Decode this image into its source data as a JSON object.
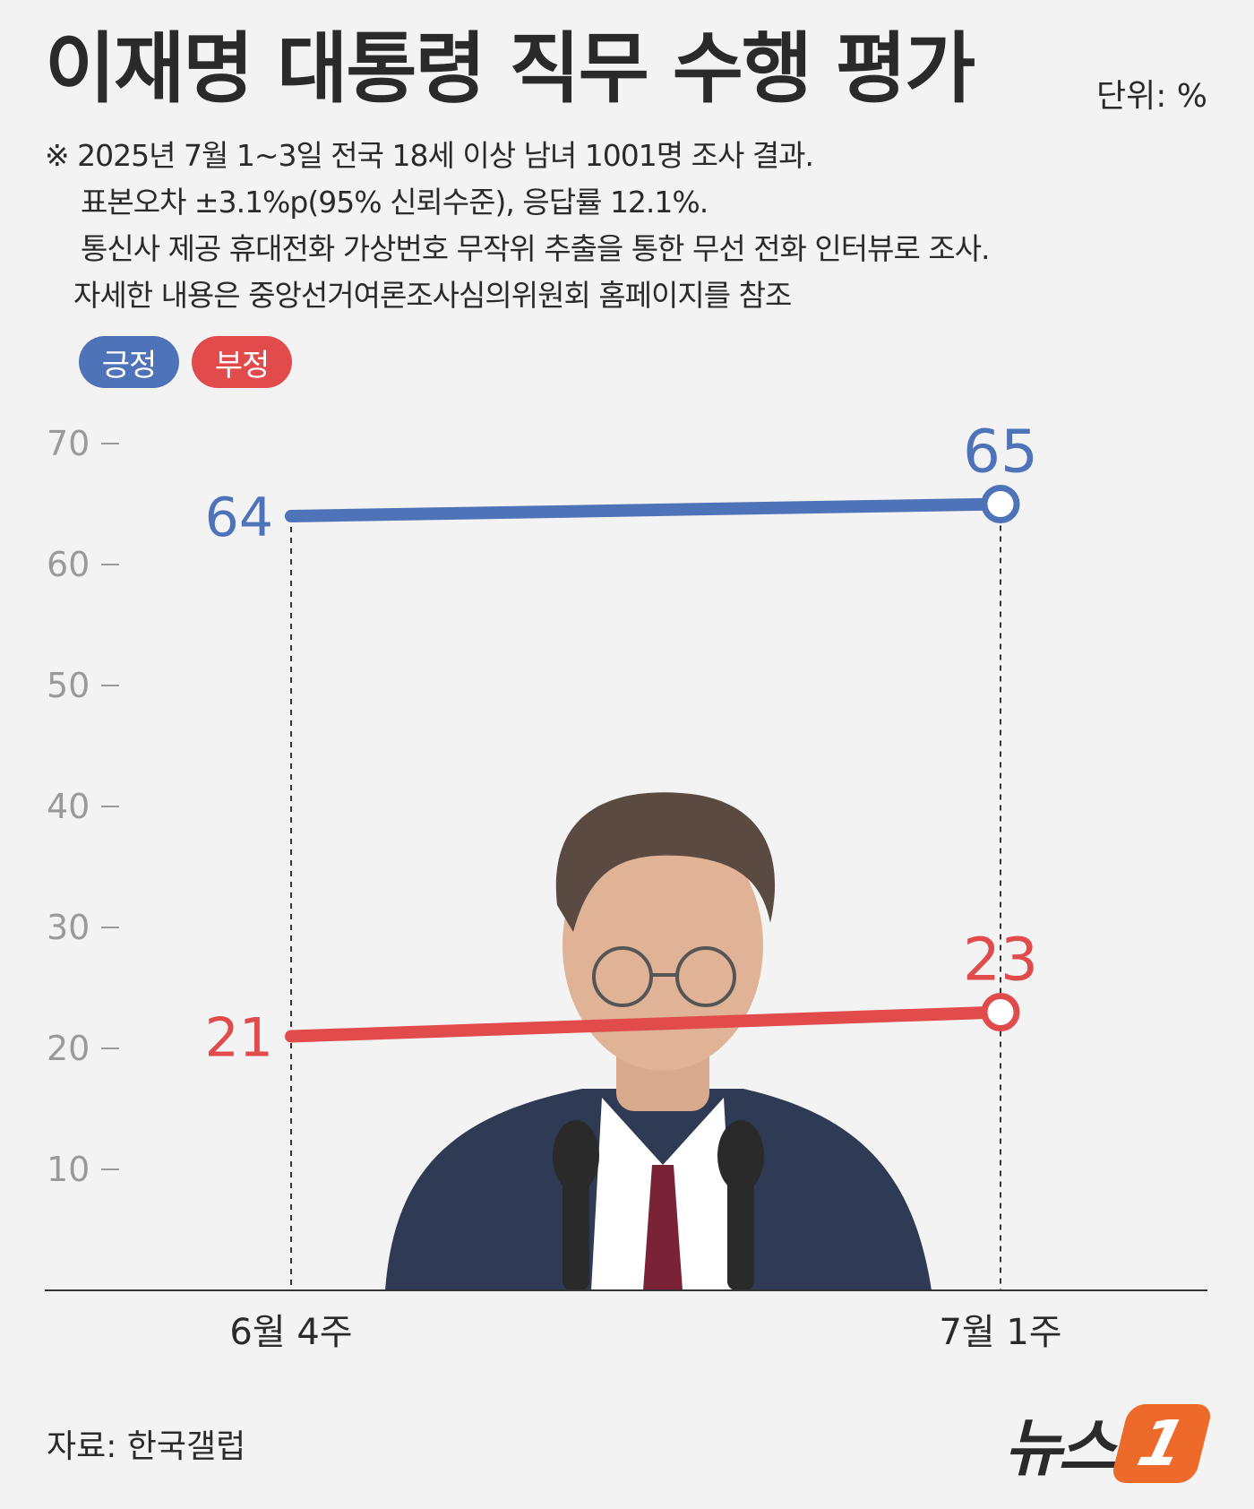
{
  "title": "이재명 대통령 직무 수행 평가",
  "unit": "단위: %",
  "notes": [
    "※ 2025년 7월 1~3일 전국 18세 이상 남녀 1001명 조사 결과.",
    "표본오차 ±3.1%p(95% 신뢰수준), 응답률 12.1%.",
    "통신사 제공 휴대전화 가상번호 무작위 추출을 통한 무선 전화 인터뷰로 조사.",
    "자세한 내용은 중앙선거여론조사심의위원회 홈페이지를 참조"
  ],
  "legend": {
    "positive": "긍정",
    "negative": "부정"
  },
  "colors": {
    "positive": "#4f73b8",
    "negative": "#e14b4b",
    "axis": "#9a9a9a",
    "logo": "#ee6a2b"
  },
  "chart_data": {
    "type": "line",
    "categories": [
      "6월 4주",
      "7월 1주"
    ],
    "series": [
      {
        "name": "긍정",
        "values": [
          64,
          65
        ]
      },
      {
        "name": "부정",
        "values": [
          21,
          23
        ]
      }
    ],
    "yticks": [
      10,
      20,
      30,
      40,
      50,
      60,
      70
    ],
    "ylim": [
      0,
      70
    ],
    "title": "이재명 대통령 직무 수행 평가",
    "xlabel": "",
    "ylabel": ""
  },
  "source": "자료: 한국갤럽",
  "logo": {
    "word": "뉴스",
    "mark": "1"
  },
  "photo": {
    "icon": "person-at-podium-icon"
  }
}
